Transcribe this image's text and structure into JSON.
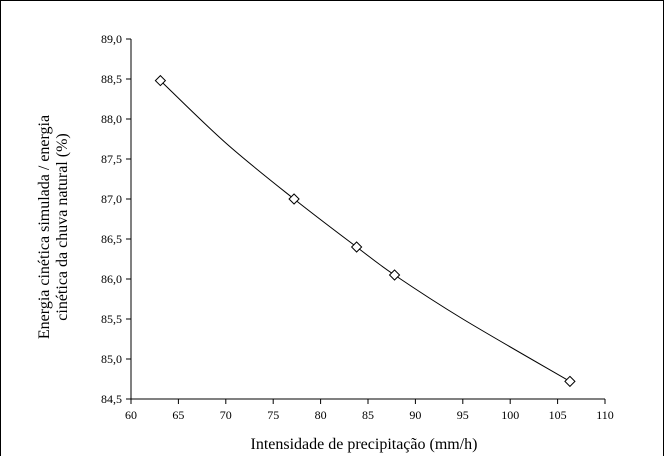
{
  "chart_data": {
    "type": "scatter",
    "title": "",
    "xlabel": "Intensidade de precipitação (mm/h)",
    "ylabel_line1": "Energia cinética simulada / energia",
    "ylabel_line2": "cinética da chuva natural (%)",
    "xlim": [
      60,
      110
    ],
    "ylim": [
      84.5,
      89.0
    ],
    "x_ticks": [
      60,
      65,
      70,
      75,
      80,
      85,
      90,
      95,
      100,
      105,
      110
    ],
    "x_tick_labels": [
      "60",
      "65",
      "70",
      "75",
      "80",
      "85",
      "90",
      "95",
      "100",
      "105",
      "110"
    ],
    "y_ticks": [
      84.5,
      85.0,
      85.5,
      86.0,
      86.5,
      87.0,
      87.5,
      88.0,
      88.5,
      89.0
    ],
    "y_tick_labels": [
      "84,5",
      "85,0",
      "85,5",
      "86,0",
      "86,5",
      "87,0",
      "87,5",
      "88,0",
      "88,5",
      "89,0"
    ],
    "grid": false,
    "marker": "diamond",
    "series": [
      {
        "points": [
          {
            "x": 63.1,
            "y": 88.48
          },
          {
            "x": 77.2,
            "y": 87.0
          },
          {
            "x": 83.8,
            "y": 86.4
          },
          {
            "x": 87.8,
            "y": 86.05
          },
          {
            "x": 106.3,
            "y": 84.72
          }
        ]
      }
    ],
    "trendline": {
      "type": "curve",
      "points": [
        {
          "x": 63.1,
          "y": 88.48
        },
        {
          "x": 70.0,
          "y": 87.7
        },
        {
          "x": 77.2,
          "y": 87.0
        },
        {
          "x": 83.8,
          "y": 86.4
        },
        {
          "x": 87.8,
          "y": 86.05
        },
        {
          "x": 95.0,
          "y": 85.5
        },
        {
          "x": 106.3,
          "y": 84.72
        }
      ]
    }
  }
}
